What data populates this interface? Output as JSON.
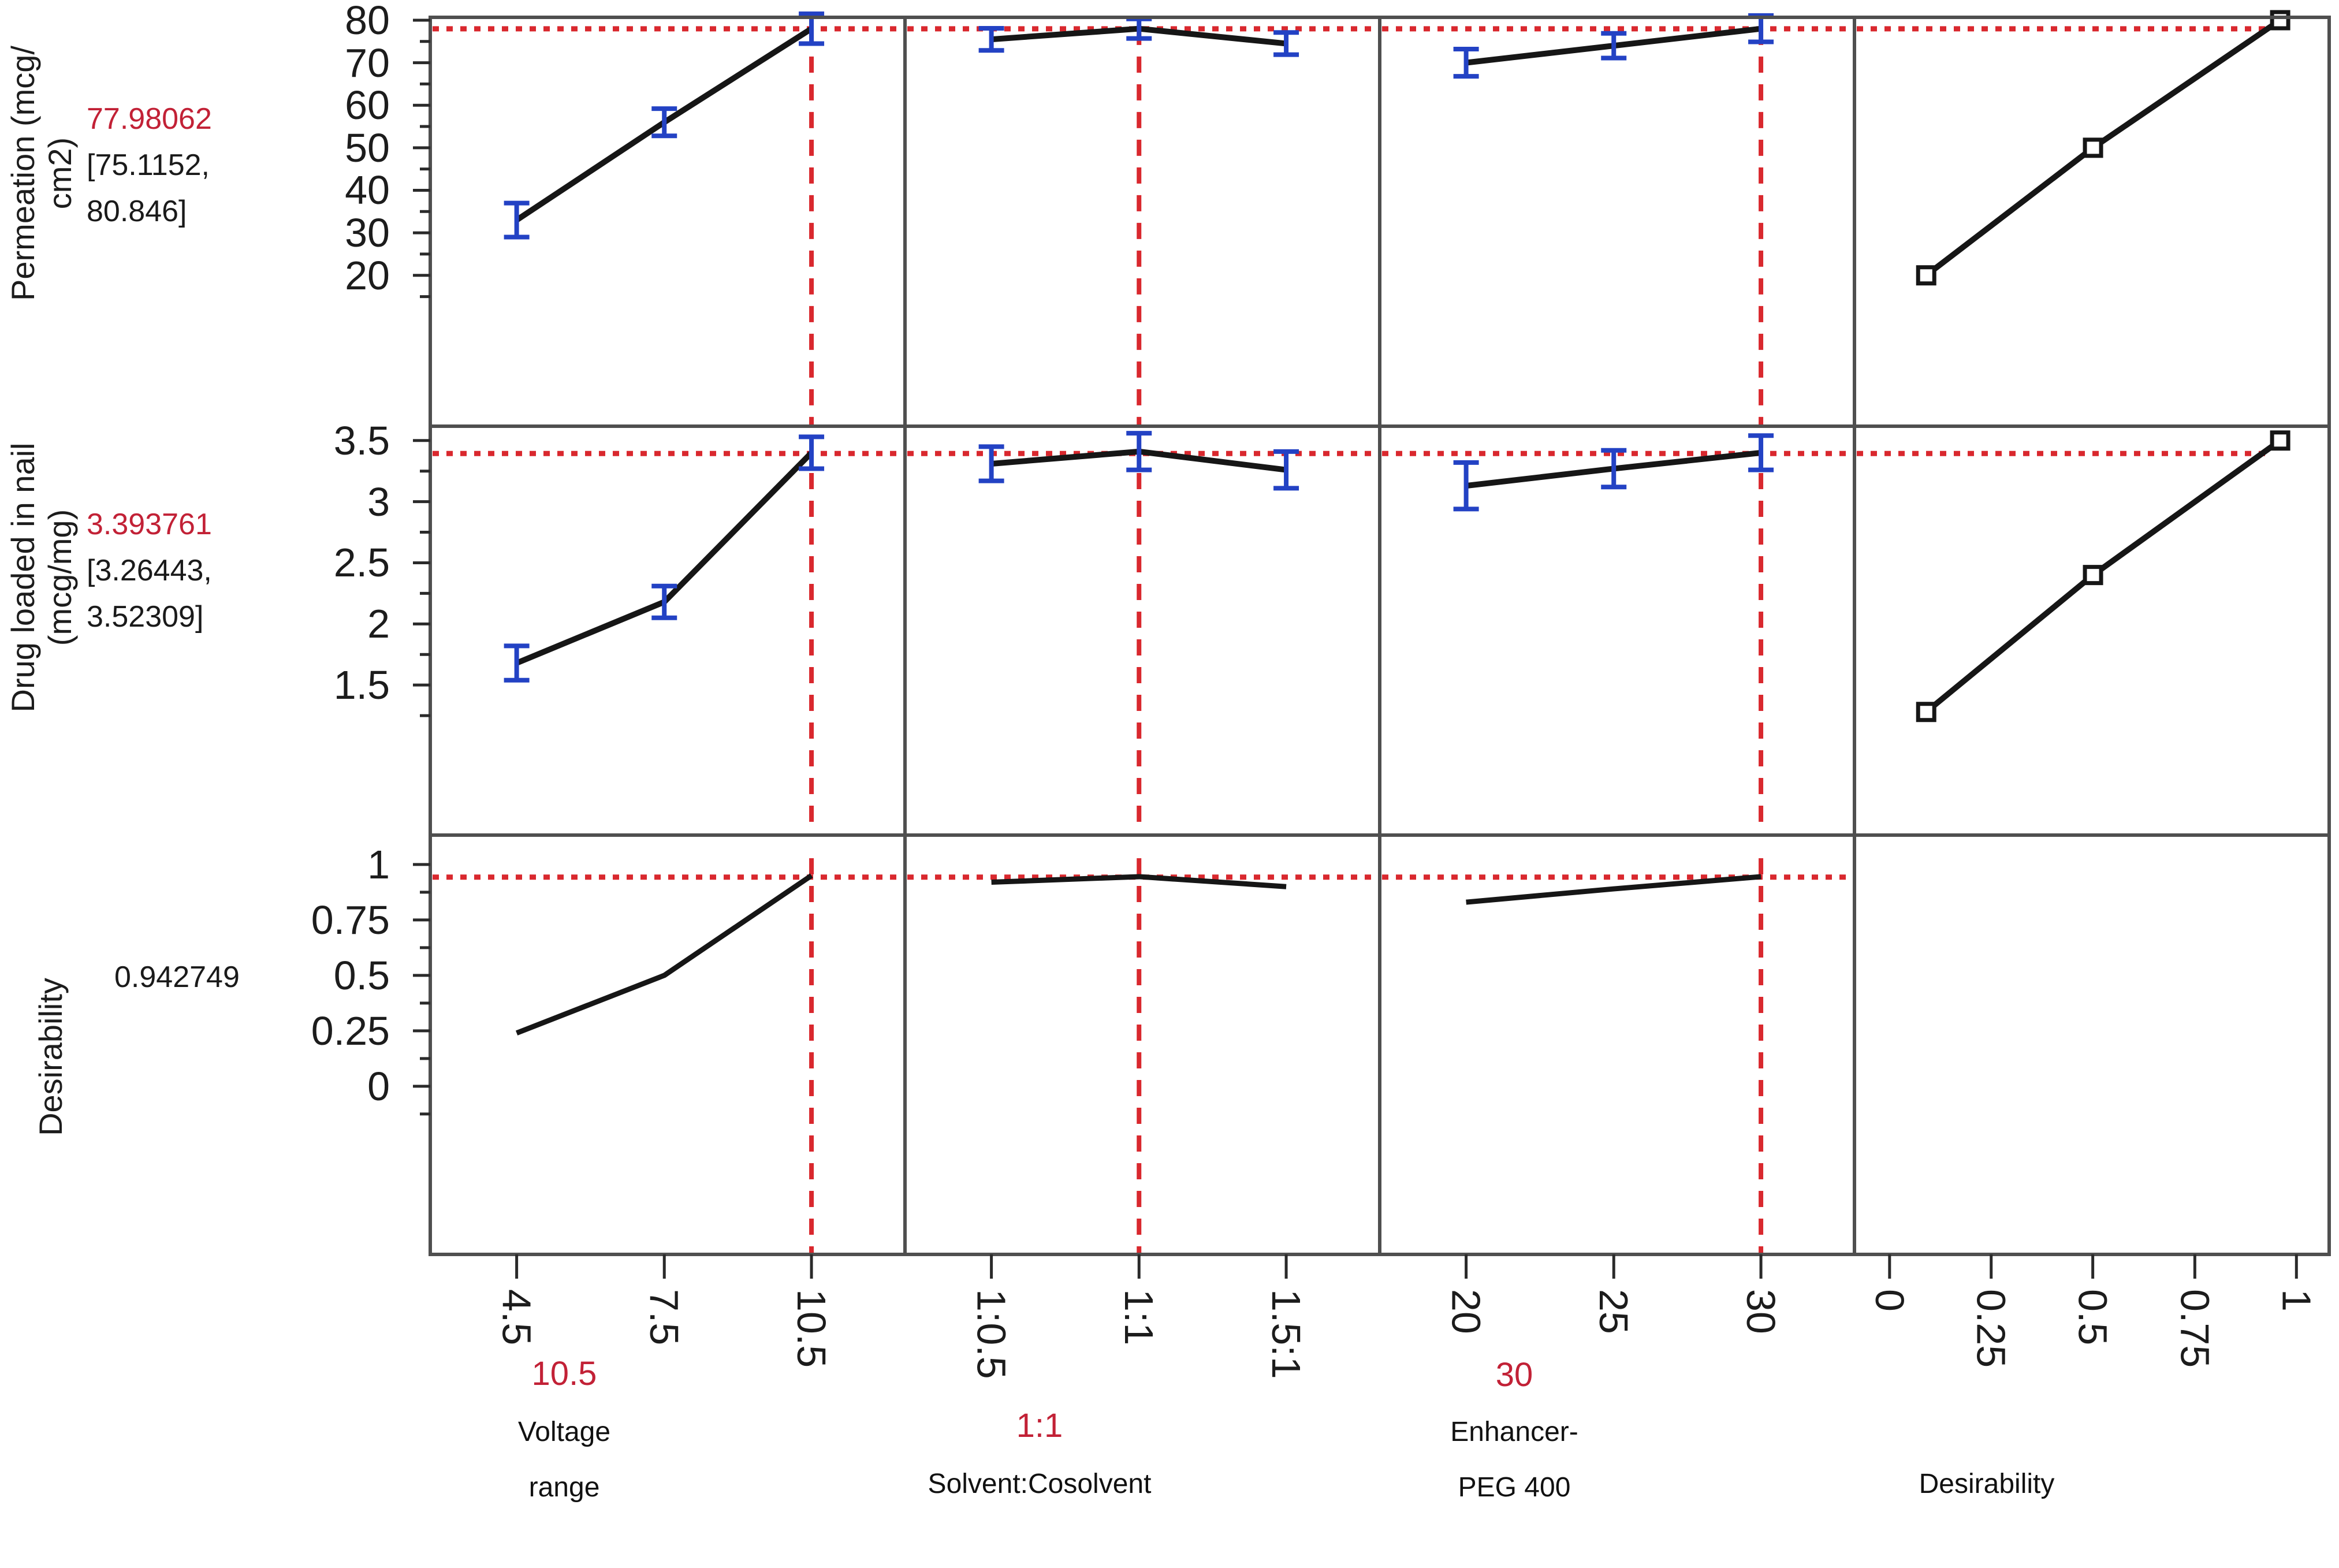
{
  "chart_data": {
    "type": "line",
    "subtype": "prediction-profiler-desirability",
    "title": "",
    "legend": "none",
    "grid": "off",
    "colors": {
      "red_line": "#d9282e",
      "red_text": "#c22136",
      "blue_errorbar": "#2342c4",
      "trace_black": "#161616",
      "panel_border": "#4f4f4f",
      "tick_color": "#2a2a2a",
      "text": "#1c1c1c"
    },
    "rows": [
      {
        "response": "Permeation (mcg/cm2)",
        "response_label_lines": [
          "Permeation (mcg/",
          "cm2)"
        ],
        "predicted_label": "77.98062",
        "predicted": 77.98062,
        "ci_label_lines": [
          "[75.1152,",
          "80.846]"
        ],
        "ci": [
          75.1152,
          80.846
        ],
        "y_tick_labels": [
          "80",
          "70",
          "60",
          "50",
          "40",
          "30",
          "20"
        ],
        "y_tick_values": [
          80,
          70,
          60,
          50,
          40,
          30,
          20
        ],
        "red_reference_value": 77.98062,
        "cells": [
          {
            "kind": "errorbar",
            "factor": "Voltage range",
            "x_labels": [
              "4.5",
              "7.5",
              "10.5"
            ],
            "values": [
              33,
              56,
              78
            ],
            "errors": [
              4.0,
              3.2,
              3.5
            ]
          },
          {
            "kind": "errorbar",
            "factor": "Solvent:Cosolvent",
            "x_labels": [
              "1:0.5",
              "1:1",
              "1.5:1"
            ],
            "values": [
              75.5,
              78,
              74.5
            ],
            "errors": [
              2.6,
              2.3,
              2.6
            ]
          },
          {
            "kind": "errorbar",
            "factor": "Enhancer-PEG 400",
            "x_labels": [
              "20",
              "25",
              "30"
            ],
            "values": [
              70,
              74,
              78
            ],
            "errors": [
              3.2,
              2.9,
              3.1
            ]
          },
          {
            "kind": "desirability",
            "factor": "Desirability",
            "d": [
              0.09,
              0.5,
              0.96
            ],
            "values": [
              20,
              50,
              80
            ]
          }
        ]
      },
      {
        "response": "Drug loaded in nail (mcg/mg)",
        "response_label_lines": [
          "Drug loaded in nail",
          "(mcg/mg)"
        ],
        "predicted_label": "3.393761",
        "predicted": 3.393761,
        "ci_label_lines": [
          "[3.26443,",
          "3.52309]"
        ],
        "ci": [
          3.26443,
          3.52309
        ],
        "y_tick_labels": [
          "3.5",
          "3",
          "2.5",
          "2",
          "1.5"
        ],
        "y_tick_values": [
          3.5,
          3,
          2.5,
          2,
          1.5
        ],
        "red_reference_value": 3.393761,
        "cells": [
          {
            "kind": "errorbar",
            "factor": "Voltage range",
            "x_labels": [
              "4.5",
              "7.5",
              "10.5"
            ],
            "values": [
              1.68,
              2.18,
              3.4
            ],
            "errors": [
              0.14,
              0.13,
              0.13
            ]
          },
          {
            "kind": "errorbar",
            "factor": "Solvent:Cosolvent",
            "x_labels": [
              "1:0.5",
              "1:1",
              "1.5:1"
            ],
            "values": [
              3.31,
              3.41,
              3.26
            ],
            "errors": [
              0.14,
              0.15,
              0.15
            ]
          },
          {
            "kind": "errorbar",
            "factor": "Enhancer-PEG 400",
            "x_labels": [
              "20",
              "25",
              "30"
            ],
            "values": [
              3.13,
              3.27,
              3.4
            ],
            "errors": [
              0.19,
              0.15,
              0.14
            ]
          },
          {
            "kind": "desirability",
            "factor": "Desirability",
            "d": [
              0.09,
              0.5,
              0.96
            ],
            "values": [
              1.28,
              2.4,
              3.5
            ]
          }
        ]
      },
      {
        "response": "Desirability",
        "response_label_lines": [
          "Desirability"
        ],
        "predicted_label": "0.942749",
        "predicted": 0.942749,
        "ci_label_lines": [],
        "y_tick_labels": [
          "1",
          "0.75",
          "0.5",
          "0.25",
          "0"
        ],
        "y_tick_values": [
          1,
          0.75,
          0.5,
          0.25,
          0
        ],
        "red_reference_value": 0.942749,
        "cells": [
          {
            "kind": "line",
            "factor": "Voltage range",
            "x_labels": [
              "4.5",
              "7.5",
              "10.5"
            ],
            "values": [
              0.24,
              0.5,
              0.95
            ]
          },
          {
            "kind": "line",
            "factor": "Solvent:Cosolvent",
            "x_labels": [
              "1:0.5",
              "1:1",
              "1.5:1"
            ],
            "values": [
              0.92,
              0.945,
              0.9
            ]
          },
          {
            "kind": "line",
            "factor": "Enhancer-PEG 400",
            "x_labels": [
              "20",
              "25",
              "30"
            ],
            "values": [
              0.83,
              0.89,
              0.945
            ]
          },
          {
            "kind": "empty",
            "factor": "Desirability"
          }
        ]
      }
    ],
    "columns": [
      {
        "label_lines": [
          "Voltage",
          "range"
        ],
        "setting": "10.5",
        "x_tick_labels": [
          "4.5",
          "7.5",
          "10.5"
        ],
        "current_level_index": 2
      },
      {
        "label_lines": [
          "Solvent:Cosolvent"
        ],
        "setting": "1:1",
        "x_tick_labels": [
          "1:0.5",
          "1:1",
          "1.5:1"
        ],
        "current_level_index": 1
      },
      {
        "label_lines": [
          "Enhancer-",
          "PEG 400"
        ],
        "setting": "30",
        "x_tick_labels": [
          "20",
          "25",
          "30"
        ],
        "current_level_index": 2
      },
      {
        "label_lines": [
          "Desirability"
        ],
        "setting": null,
        "x_tick_labels": [
          "0",
          "0.25",
          "0.5",
          "0.75",
          "1"
        ],
        "current_level_index": null
      }
    ]
  }
}
